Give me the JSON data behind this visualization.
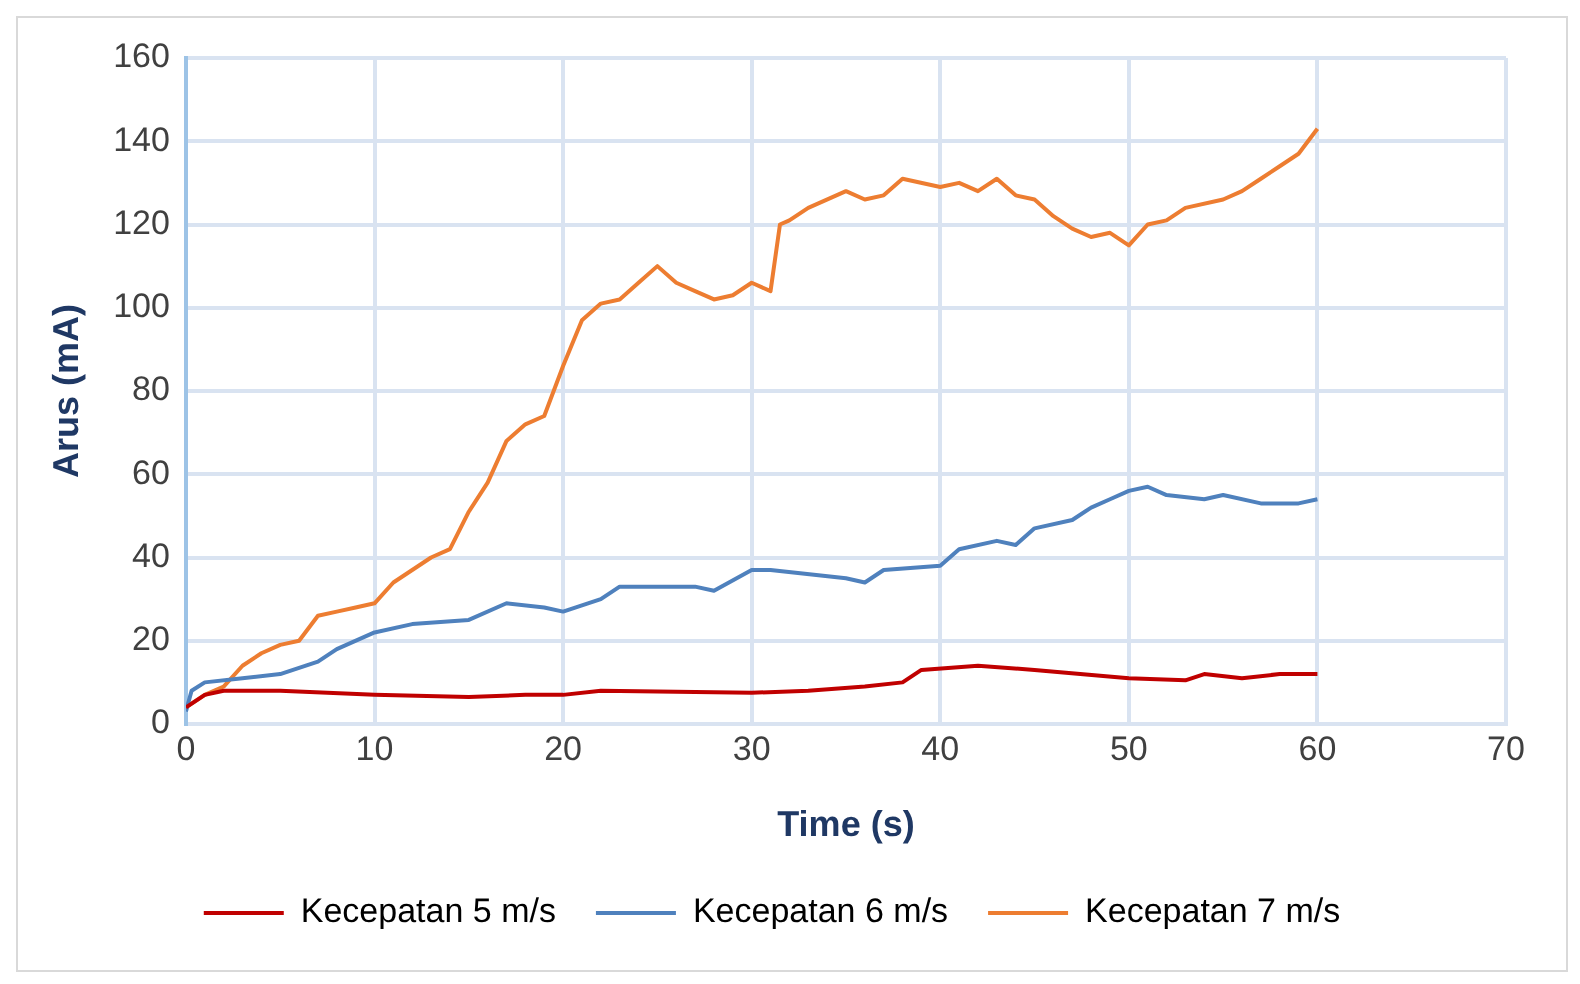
{
  "chart_data": {
    "type": "line",
    "xlabel": "Time (s)",
    "ylabel": "Arus (mA)",
    "xlim": [
      0,
      70
    ],
    "xticks": [
      0,
      10,
      20,
      30,
      40,
      50,
      60,
      70
    ],
    "ylim": [
      0,
      160
    ],
    "yticks": [
      0,
      20,
      40,
      60,
      80,
      100,
      120,
      140,
      160
    ],
    "grid": true,
    "legend": "bottom",
    "marker": "none",
    "line_style": "solid",
    "series": [
      {
        "name": "Kecepatan 5 m/s",
        "color": "#c00000",
        "x": [
          0,
          1,
          2,
          5,
          10,
          15,
          18,
          20,
          22,
          30,
          33,
          36,
          38,
          39,
          42,
          45,
          50,
          53,
          54,
          56,
          58,
          60
        ],
        "values": [
          4,
          7,
          8,
          8,
          7,
          6.5,
          7,
          7,
          8,
          7.5,
          8,
          9,
          10,
          13,
          14,
          13,
          11,
          10.5,
          12,
          11,
          12,
          12
        ]
      },
      {
        "name": "Kecepatan 6 m/s",
        "color": "#4f81bd",
        "x": [
          0,
          0.3,
          1,
          3,
          5,
          7,
          8,
          10,
          12,
          15,
          17,
          19,
          20,
          22,
          23,
          25,
          27,
          28,
          30,
          31,
          35,
          36,
          37,
          40,
          41,
          43,
          44,
          45,
          47,
          48,
          49,
          50,
          51,
          52,
          54,
          55,
          57,
          59,
          60
        ],
        "values": [
          3,
          8,
          10,
          11,
          12,
          15,
          18,
          22,
          24,
          25,
          29,
          28,
          27,
          30,
          33,
          33,
          33,
          32,
          37,
          37,
          35,
          34,
          37,
          38,
          42,
          44,
          43,
          47,
          49,
          52,
          54,
          56,
          57,
          55,
          54,
          55,
          53,
          53,
          54
        ]
      },
      {
        "name": "Kecepatan 7 m/s",
        "color": "#ed7d31",
        "x": [
          0,
          1,
          2,
          3,
          4,
          5,
          6,
          7,
          8,
          9,
          10,
          11,
          12,
          13,
          14,
          15,
          16,
          17,
          18,
          19,
          20,
          21,
          22,
          23,
          24,
          25,
          26,
          27,
          28,
          29,
          30,
          31,
          31.5,
          32,
          33,
          35,
          36,
          37,
          38,
          40,
          41,
          42,
          43,
          44,
          45,
          46,
          47,
          48,
          49,
          50,
          51,
          52,
          53,
          55,
          56,
          57,
          58,
          59,
          60
        ],
        "values": [
          4,
          7,
          9,
          14,
          17,
          19,
          20,
          26,
          27,
          28,
          29,
          34,
          37,
          40,
          42,
          51,
          58,
          68,
          72,
          74,
          86,
          97,
          101,
          102,
          106,
          110,
          106,
          104,
          102,
          103,
          106,
          104,
          120,
          121,
          124,
          128,
          126,
          127,
          131,
          129,
          130,
          128,
          131,
          127,
          126,
          122,
          119,
          117,
          118,
          115,
          120,
          121,
          124,
          126,
          128,
          131,
          134,
          137,
          143
        ]
      }
    ]
  }
}
